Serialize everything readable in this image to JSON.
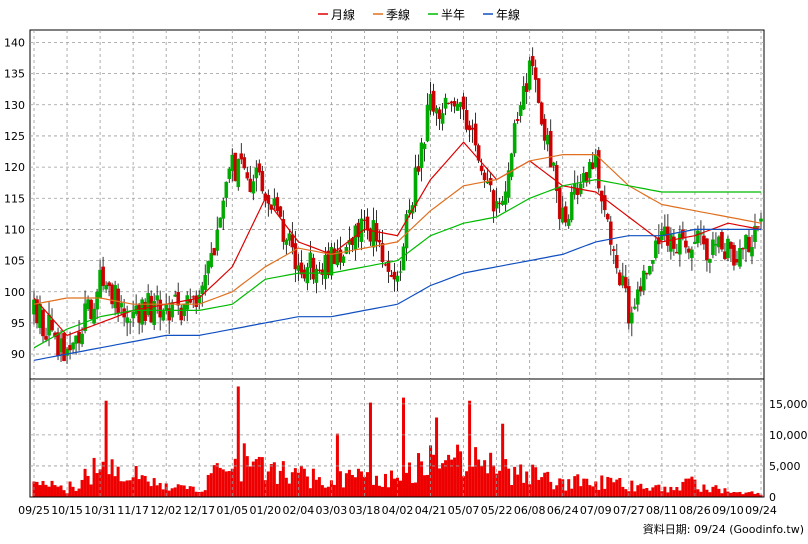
{
  "legend": {
    "items": [
      {
        "label": "月線",
        "color": "#dd0000"
      },
      {
        "label": "季線",
        "color": "#e07020"
      },
      {
        "label": "半年",
        "color": "#00bb00"
      },
      {
        "label": "年線",
        "color": "#1050c0"
      }
    ],
    "position": "top-center"
  },
  "footer": {
    "source": "資料日期: 09/24  (Goodinfo.tw)"
  },
  "chart_data": [
    {
      "type": "candlestick",
      "title": "",
      "xlabel": "",
      "ylabel": "",
      "ylim": [
        86,
        142
      ],
      "y_ticks": [
        90,
        95,
        100,
        105,
        110,
        115,
        120,
        125,
        130,
        135,
        140
      ],
      "grid": true,
      "up_color": "#00aa00",
      "down_color": "#cc0000",
      "x_tick_labels": [
        "09/25",
        "10/15",
        "10/31",
        "11/17",
        "12/02",
        "12/17",
        "01/05",
        "01/20",
        "02/04",
        "03/03",
        "03/18",
        "04/02",
        "04/21",
        "05/07",
        "05/22",
        "06/08",
        "06/24",
        "07/09",
        "07/27",
        "08/11",
        "08/26",
        "09/10",
        "09/24"
      ],
      "close_trend": [
        {
          "date": "09/25",
          "close": 97
        },
        {
          "date": "10/15",
          "close": 90
        },
        {
          "date": "10/31",
          "close": 101
        },
        {
          "date": "11/17",
          "close": 97
        },
        {
          "date": "12/02",
          "close": 98
        },
        {
          "date": "12/17",
          "close": 97
        },
        {
          "date": "01/05",
          "close": 120
        },
        {
          "date": "01/20",
          "close": 117
        },
        {
          "date": "02/04",
          "close": 104
        },
        {
          "date": "03/03",
          "close": 105
        },
        {
          "date": "03/18",
          "close": 112
        },
        {
          "date": "04/02",
          "close": 103
        },
        {
          "date": "04/21",
          "close": 130
        },
        {
          "date": "05/07",
          "close": 128
        },
        {
          "date": "05/22",
          "close": 112
        },
        {
          "date": "06/08",
          "close": 136
        },
        {
          "date": "06/24",
          "close": 112
        },
        {
          "date": "07/09",
          "close": 120
        },
        {
          "date": "07/27",
          "close": 96
        },
        {
          "date": "08/11",
          "close": 109
        },
        {
          "date": "08/26",
          "close": 108
        },
        {
          "date": "09/10",
          "close": 106
        },
        {
          "date": "09/24",
          "close": 110
        }
      ],
      "moving_averages": [
        {
          "name": "月線",
          "color": "#dd0000",
          "values": [
            99,
            93,
            95,
            97,
            98,
            99,
            104,
            115,
            108,
            106,
            110,
            109,
            118,
            124,
            118,
            121,
            117,
            116,
            112,
            108,
            109,
            111,
            110
          ]
        },
        {
          "name": "季線",
          "color": "#e07020",
          "values": [
            98,
            99,
            99,
            98,
            98,
            98,
            100,
            104,
            107,
            106,
            107,
            108,
            113,
            117,
            118,
            121,
            122,
            122,
            117,
            114,
            113,
            112,
            111
          ]
        },
        {
          "name": "半年",
          "color": "#00bb00",
          "values": [
            91,
            94,
            96,
            97,
            97,
            97,
            98,
            102,
            103,
            103,
            104,
            105,
            109,
            111,
            112,
            115,
            117,
            118,
            117,
            116,
            116,
            116,
            116
          ]
        },
        {
          "name": "年線",
          "color": "#1050c0",
          "values": [
            89,
            90,
            91,
            92,
            93,
            93,
            94,
            95,
            96,
            96,
            97,
            98,
            101,
            103,
            104,
            105,
            106,
            108,
            109,
            109,
            110,
            110,
            110
          ]
        }
      ]
    },
    {
      "type": "bar",
      "title": "",
      "xlabel": "",
      "ylabel": "",
      "ylim": [
        0,
        19000
      ],
      "y_tick_labels": [
        "0",
        "5,000",
        "10,000",
        "15,000"
      ],
      "y_ticks": [
        0,
        5000,
        10000,
        15000
      ],
      "color": "#ee0000",
      "volume_profile": [
        {
          "date": "09/25",
          "volume": 2500
        },
        {
          "date": "10/15",
          "volume": 1500
        },
        {
          "date": "10/31",
          "volume": 6000
        },
        {
          "date": "11/17",
          "volume": 4000
        },
        {
          "date": "12/02",
          "volume": 2500
        },
        {
          "date": "12/17",
          "volume": 1500
        },
        {
          "date": "01/05",
          "volume": 8000
        },
        {
          "date": "01/20",
          "volume": 5000
        },
        {
          "date": "02/04",
          "volume": 4000
        },
        {
          "date": "03/03",
          "volume": 3000
        },
        {
          "date": "03/18",
          "volume": 5000
        },
        {
          "date": "04/02",
          "volume": 3000
        },
        {
          "date": "04/21",
          "volume": 8000
        },
        {
          "date": "05/07",
          "volume": 7000
        },
        {
          "date": "05/22",
          "volume": 5000
        },
        {
          "date": "06/08",
          "volume": 4000
        },
        {
          "date": "06/24",
          "volume": 2500
        },
        {
          "date": "07/09",
          "volume": 3000
        },
        {
          "date": "07/27",
          "volume": 2000
        },
        {
          "date": "08/11",
          "volume": 2000
        },
        {
          "date": "08/26",
          "volume": 2500
        },
        {
          "date": "09/10",
          "volume": 1000
        },
        {
          "date": "09/24",
          "volume": 600
        }
      ],
      "peaks": [
        {
          "date": "10/31",
          "volume": 15500
        },
        {
          "date": "01/05",
          "volume": 17800
        },
        {
          "date": "01/20",
          "volume": 5300
        },
        {
          "date": "03/03",
          "volume": 10200
        },
        {
          "date": "03/18",
          "volume": 15200
        },
        {
          "date": "04/02",
          "volume": 16000
        },
        {
          "date": "04/21",
          "volume": 12800
        },
        {
          "date": "05/07",
          "volume": 15500
        },
        {
          "date": "05/22",
          "volume": 11800
        }
      ]
    }
  ]
}
